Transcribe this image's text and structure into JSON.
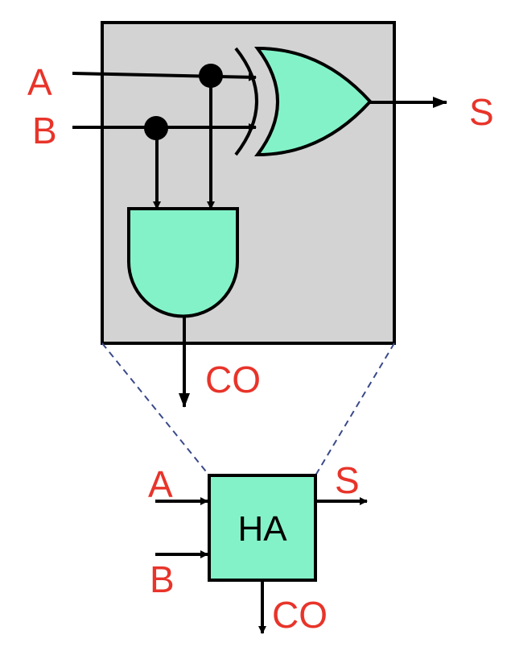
{
  "colors": {
    "background": "#ffffff",
    "module_fill": "#d3d3d3",
    "gate_fill": "#84f2c8",
    "label": "#e8342a",
    "wire": "#000000",
    "dashed": "#3a4a8a"
  },
  "detail": {
    "input_a": "A",
    "input_b": "B",
    "output_s": "S",
    "output_co": "CO",
    "gates": [
      "xor-gate",
      "and-gate"
    ]
  },
  "block": {
    "label": "HA",
    "input_a": "A",
    "input_b": "B",
    "output_s": "S",
    "output_co": "CO"
  }
}
